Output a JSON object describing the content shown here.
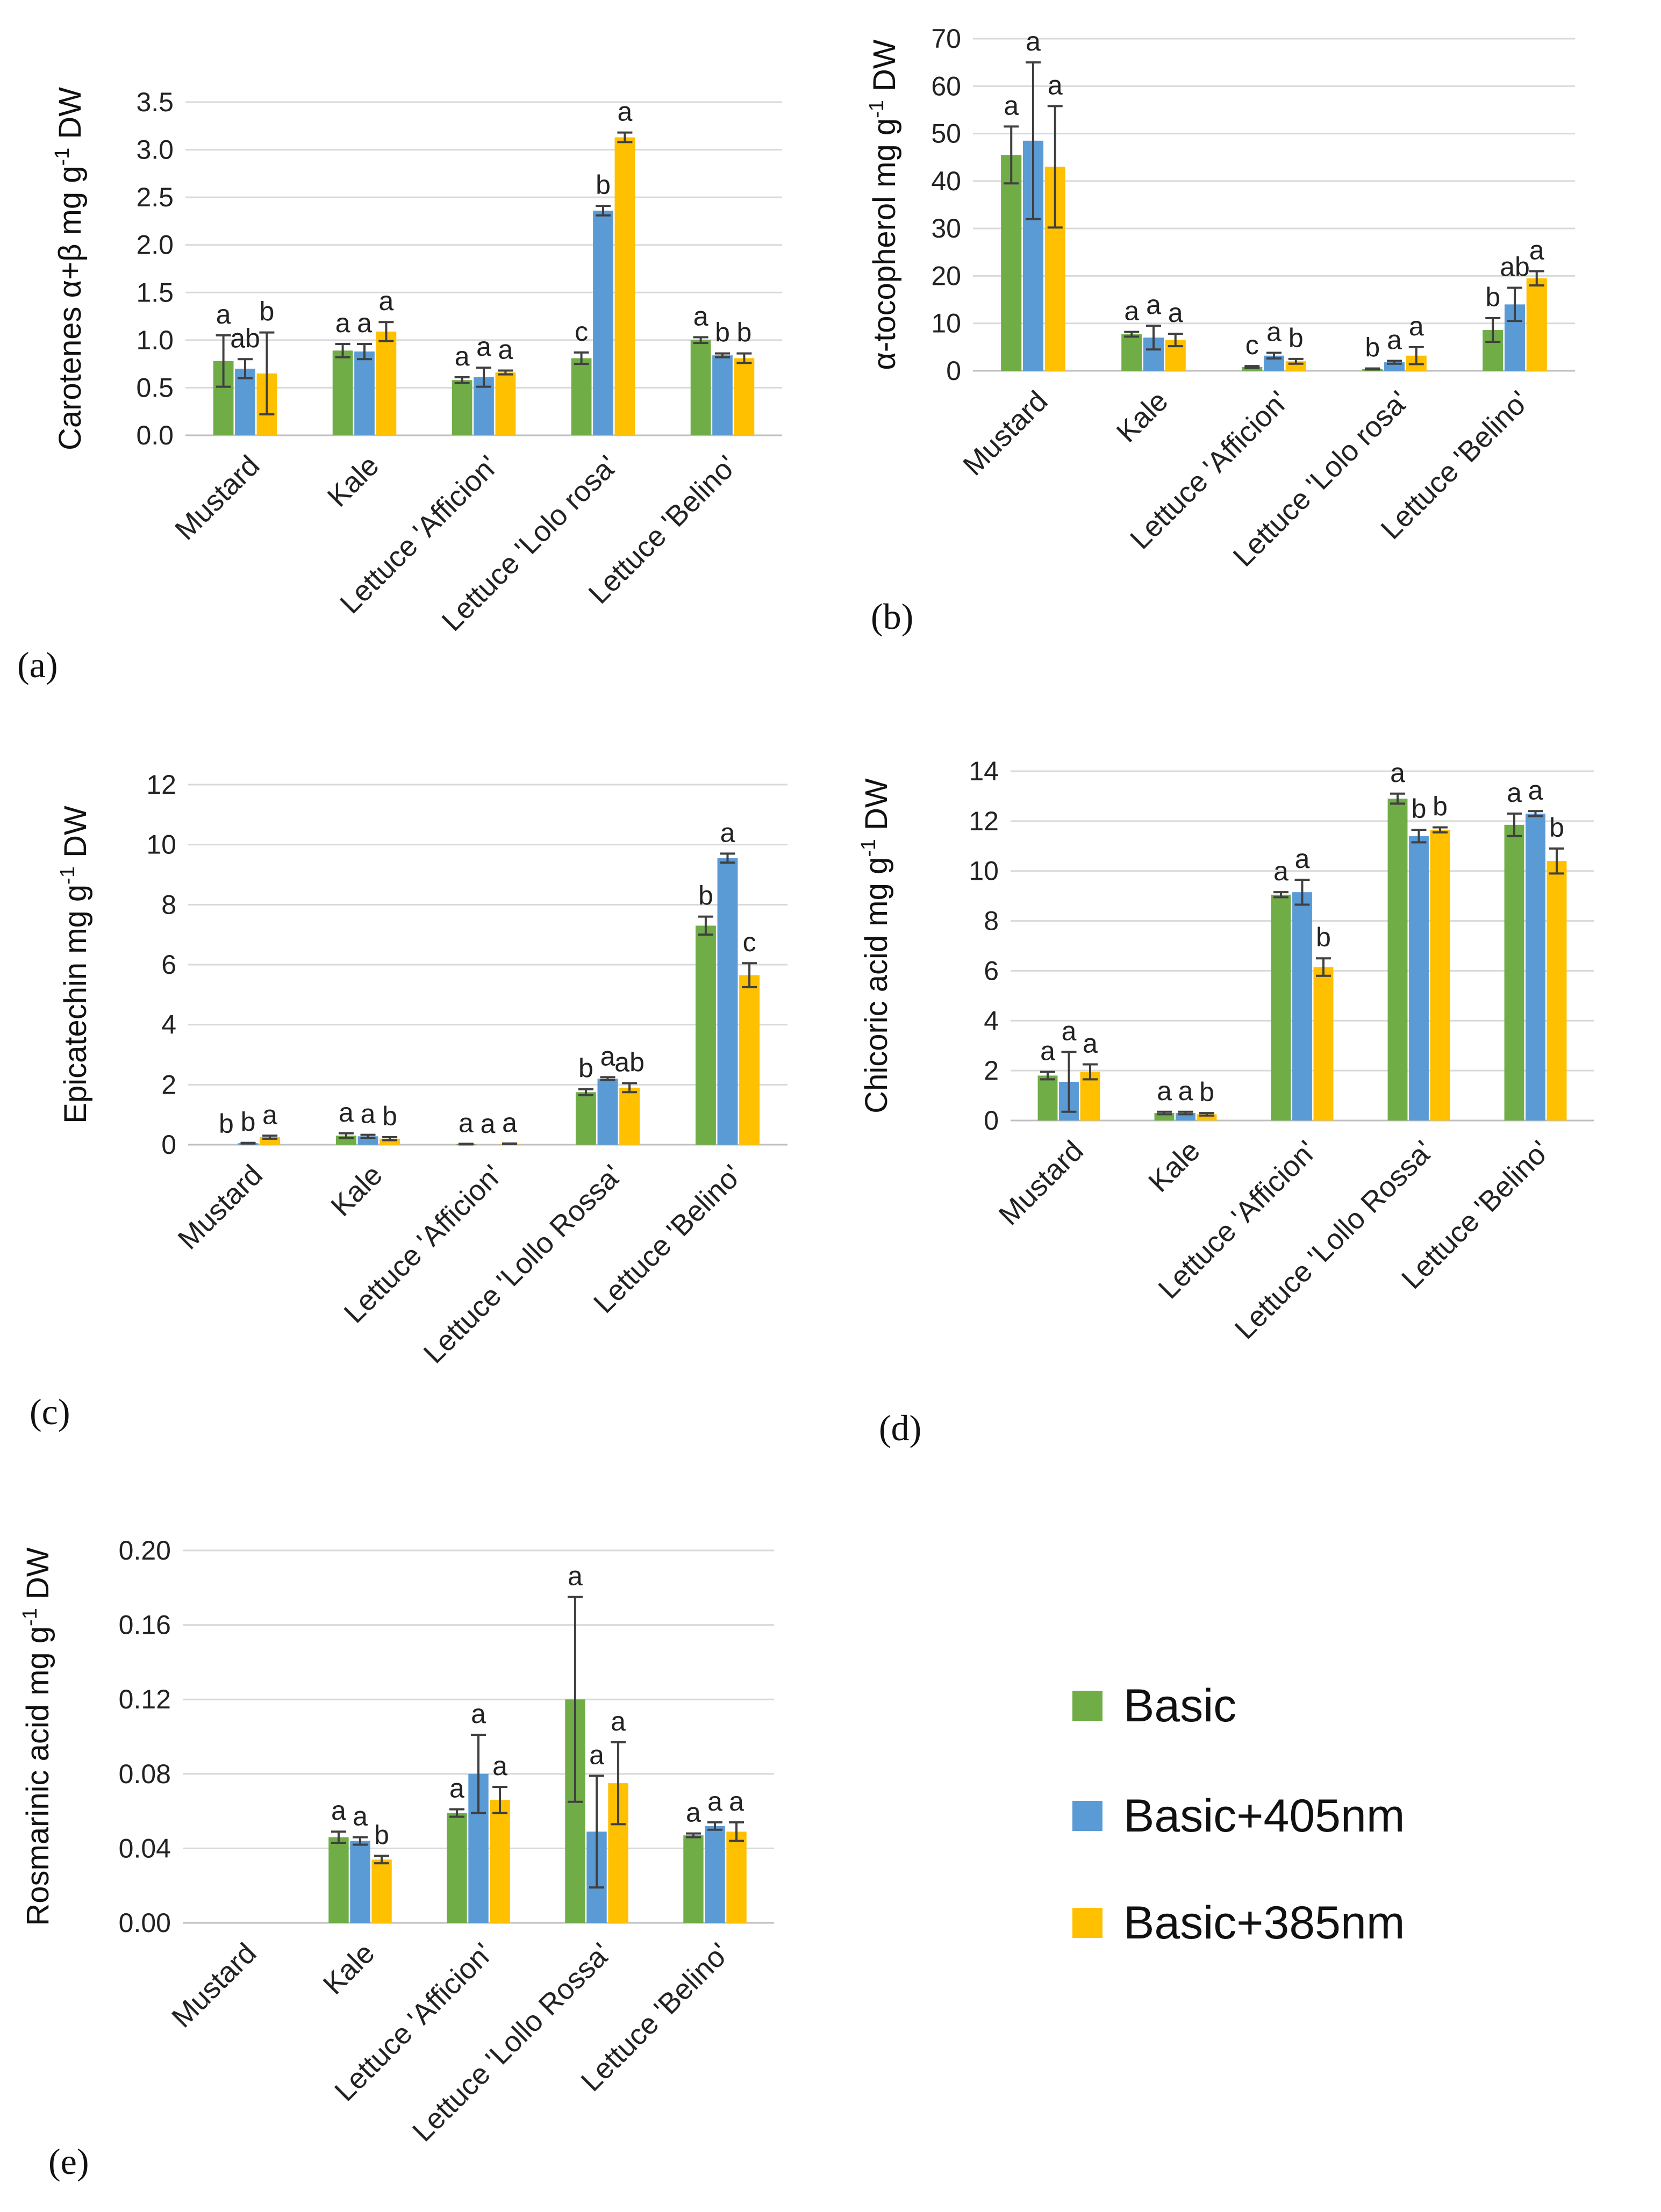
{
  "legend": {
    "items": [
      {
        "name": "Basic",
        "color": "#70AD47"
      },
      {
        "name": "Basic+405nm",
        "color": "#5B9BD5"
      },
      {
        "name": "Basic+385nm",
        "color": "#FFC000"
      }
    ]
  },
  "chart_data": [
    {
      "type": "bar",
      "panel": "(a)",
      "ylabel_main": "Carotenes α+β mg g",
      "ylabel_sup": "-1",
      "ylabel_tail": " DW",
      "ylim": [
        0,
        3.5
      ],
      "yticks": [
        "0.0",
        "0.5",
        "1.0",
        "1.5",
        "2.0",
        "2.5",
        "3.0",
        "3.5"
      ],
      "categories": [
        "Mustard",
        "Kale",
        "Lettuce 'Afficion'",
        "Lettuce 'Lolo rosa'",
        "Lettuce 'Belino'"
      ],
      "series": [
        {
          "name": "Basic",
          "values": [
            0.78,
            0.89,
            0.58,
            0.81,
            1.0
          ],
          "errors": [
            0.27,
            0.07,
            0.03,
            0.06,
            0.03
          ],
          "letters": [
            "a",
            "a",
            "a",
            "c",
            "a"
          ]
        },
        {
          "name": "Basic+405nm",
          "values": [
            0.7,
            0.88,
            0.61,
            2.36,
            0.84
          ],
          "errors": [
            0.1,
            0.08,
            0.1,
            0.05,
            0.02
          ],
          "letters": [
            "ab",
            "a",
            "a",
            "b",
            "b"
          ]
        },
        {
          "name": "Basic+385nm",
          "values": [
            0.65,
            1.09,
            0.66,
            3.13,
            0.81
          ],
          "errors": [
            0.43,
            0.1,
            0.02,
            0.05,
            0.05
          ],
          "letters": [
            "b",
            "a",
            "a",
            "a",
            "b"
          ]
        }
      ]
    },
    {
      "type": "bar",
      "panel": "(b)",
      "ylabel_main": "α-tocopherol mg g",
      "ylabel_sup": "-1",
      "ylabel_tail": " DW",
      "ylim": [
        0,
        70
      ],
      "yticks": [
        "0",
        "10",
        "20",
        "30",
        "40",
        "50",
        "60",
        "70"
      ],
      "categories": [
        "Mustard",
        "Kale",
        "Lettuce 'Afficion'",
        "Lettuce 'Lolo rosa'",
        "Lettuce 'Belino'"
      ],
      "series": [
        {
          "name": "Basic",
          "values": [
            45.5,
            7.7,
            0.8,
            0.4,
            8.6
          ],
          "errors": [
            6.0,
            0.5,
            0.2,
            0.1,
            2.5
          ],
          "letters": [
            "a",
            "a",
            "c",
            "b",
            "b"
          ]
        },
        {
          "name": "Basic+405nm",
          "values": [
            48.5,
            7.0,
            3.2,
            1.8,
            14.0
          ],
          "errors": [
            16.5,
            2.5,
            0.6,
            0.3,
            3.5
          ],
          "letters": [
            "a",
            "a",
            "a",
            "a",
            "ab"
          ]
        },
        {
          "name": "Basic+385nm",
          "values": [
            43.0,
            6.5,
            2.0,
            3.2,
            19.5
          ],
          "errors": [
            12.8,
            1.3,
            0.5,
            1.8,
            1.5
          ],
          "letters": [
            "a",
            "a",
            "b",
            "a",
            "a"
          ]
        }
      ]
    },
    {
      "type": "bar",
      "panel": "(c)",
      "ylabel_main": "Epicatechin mg g",
      "ylabel_sup": "-1",
      "ylabel_tail": " DW",
      "ylim": [
        0,
        12
      ],
      "yticks": [
        "0",
        "2",
        "4",
        "6",
        "8",
        "10",
        "12"
      ],
      "categories": [
        "Mustard",
        "Kale",
        "Lettuce 'Afficion'",
        "Lettuce 'Lollo Rossa'",
        "Lettuce 'Belino'"
      ],
      "series": [
        {
          "name": "Basic",
          "values": [
            0.0,
            0.3,
            0.02,
            1.75,
            7.3
          ],
          "errors": [
            0.0,
            0.08,
            0.01,
            0.1,
            0.3
          ],
          "letters": [
            "b",
            "a",
            "a",
            "b",
            "b"
          ]
        },
        {
          "name": "Basic+405nm",
          "values": [
            0.05,
            0.28,
            0.0,
            2.2,
            9.55
          ],
          "errors": [
            0.01,
            0.05,
            0.0,
            0.05,
            0.15
          ],
          "letters": [
            "b",
            "a",
            "a",
            "a",
            "a"
          ]
        },
        {
          "name": "Basic+385nm",
          "values": [
            0.25,
            0.2,
            0.03,
            1.9,
            5.65
          ],
          "errors": [
            0.05,
            0.05,
            0.01,
            0.15,
            0.4
          ],
          "letters": [
            "a",
            "b",
            "a",
            "ab",
            "c"
          ]
        }
      ]
    },
    {
      "type": "bar",
      "panel": "(d)",
      "ylabel_main": "Chicoric acid mg g",
      "ylabel_sup": "-1",
      "ylabel_tail": " DW",
      "ylim": [
        0,
        14
      ],
      "yticks": [
        "0",
        "2",
        "4",
        "6",
        "8",
        "10",
        "12",
        "14"
      ],
      "categories": [
        "Mustard",
        "Kale",
        "Lettuce 'Afficion'",
        "Lettuce 'Lollo Rossa'",
        "Lettuce 'Belino'"
      ],
      "series": [
        {
          "name": "Basic",
          "values": [
            1.8,
            0.3,
            9.05,
            12.9,
            11.85
          ],
          "errors": [
            0.15,
            0.05,
            0.1,
            0.2,
            0.45
          ],
          "letters": [
            "a",
            "a",
            "a",
            "a",
            "a"
          ]
        },
        {
          "name": "Basic+405nm",
          "values": [
            1.55,
            0.3,
            9.15,
            11.4,
            12.3
          ],
          "errors": [
            1.2,
            0.05,
            0.5,
            0.25,
            0.1
          ],
          "letters": [
            "a",
            "a",
            "a",
            "b",
            "a"
          ]
        },
        {
          "name": "Basic+385nm",
          "values": [
            1.95,
            0.25,
            6.15,
            11.65,
            10.4
          ],
          "errors": [
            0.3,
            0.05,
            0.35,
            0.1,
            0.5
          ],
          "letters": [
            "a",
            "b",
            "b",
            "b",
            "b"
          ]
        }
      ]
    },
    {
      "type": "bar",
      "panel": "(e)",
      "ylabel_main": "Rosmarinic acid mg g",
      "ylabel_sup": "-1",
      "ylabel_tail": " DW",
      "ylim": [
        0,
        0.2
      ],
      "yticks": [
        "0.00",
        "0.04",
        "0.08",
        "0.12",
        "0.16",
        "0.20"
      ],
      "categories": [
        "Mustard",
        "Kale",
        "Lettuce 'Afficion'",
        "Lettuce 'Lollo Rossa'",
        "Lettuce 'Belino'"
      ],
      "series": [
        {
          "name": "Basic",
          "values": [
            null,
            0.046,
            0.059,
            0.12,
            0.047
          ],
          "errors": [
            null,
            0.003,
            0.002,
            0.055,
            0.001
          ],
          "letters": [
            "",
            "a",
            "a",
            "a",
            "a"
          ]
        },
        {
          "name": "Basic+405nm",
          "values": [
            null,
            0.044,
            0.08,
            0.049,
            0.052
          ],
          "errors": [
            null,
            0.002,
            0.021,
            0.03,
            0.002
          ],
          "letters": [
            "",
            "a",
            "a",
            "a",
            "a"
          ]
        },
        {
          "name": "Basic+385nm",
          "values": [
            null,
            0.034,
            0.066,
            0.075,
            0.049
          ],
          "errors": [
            null,
            0.002,
            0.007,
            0.022,
            0.005
          ],
          "letters": [
            "",
            "b",
            "a",
            "a",
            "a"
          ]
        }
      ]
    }
  ]
}
